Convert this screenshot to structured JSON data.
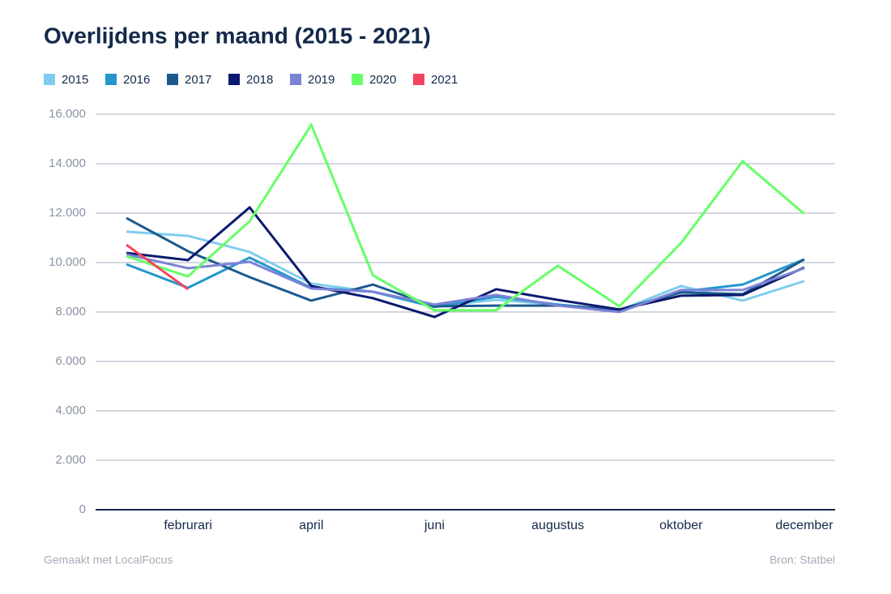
{
  "chart_data": {
    "type": "line",
    "title": "Overlijdens per maand (2015 - 2021)",
    "categories": [
      null,
      "februrari",
      null,
      "april",
      null,
      "juni",
      null,
      "augustus",
      null,
      "oktober",
      null,
      "december"
    ],
    "series": [
      {
        "name": "2015",
        "color": "#7fcdee",
        "values": [
          11250,
          11080,
          10430,
          9150,
          8820,
          8230,
          8490,
          8300,
          8070,
          9050,
          8460,
          9250
        ]
      },
      {
        "name": "2016",
        "color": "#2596cc",
        "values": [
          9930,
          8980,
          10200,
          8980,
          8820,
          8200,
          8620,
          8300,
          8070,
          8820,
          9110,
          10130
        ]
      },
      {
        "name": "2017",
        "color": "#1c5a8e",
        "values": [
          11800,
          10460,
          9410,
          8460,
          9110,
          8230,
          8260,
          8260,
          8100,
          8790,
          8720,
          10130
        ]
      },
      {
        "name": "2018",
        "color": "#0b1a6e",
        "values": [
          10390,
          10100,
          12230,
          9050,
          8560,
          7800,
          8920,
          8490,
          8100,
          8660,
          8690,
          9800
        ]
      },
      {
        "name": "2019",
        "color": "#7b83d6",
        "values": [
          10330,
          9770,
          10030,
          8950,
          8820,
          8300,
          8690,
          8260,
          8000,
          8890,
          8890,
          9770
        ]
      },
      {
        "name": "2020",
        "color": "#66ff66",
        "values": [
          10260,
          9440,
          11670,
          15570,
          9480,
          8070,
          8070,
          9870,
          8230,
          10790,
          14100,
          11970
        ]
      },
      {
        "name": "2021",
        "color": "#f5445f",
        "values": [
          10720,
          8920,
          null,
          null,
          null,
          null,
          null,
          null,
          null,
          null,
          null,
          null
        ]
      }
    ],
    "ylim": [
      0,
      16000
    ],
    "yticks": [
      0,
      {
        "value": 2000,
        "label": "2.000"
      },
      {
        "value": 4000,
        "label": "4.000"
      },
      {
        "value": 6000,
        "label": "6.000"
      },
      {
        "value": 8000,
        "label": "8.000"
      },
      {
        "value": 10000,
        "label": "10.000"
      },
      {
        "value": 12000,
        "label": "12.000"
      },
      {
        "value": 14000,
        "label": "14.000"
      },
      {
        "value": 16000,
        "label": "16.000"
      }
    ],
    "grid": true,
    "legend": "top",
    "footer_left": "Gemaakt met LocalFocus",
    "footer_right": "Bron: Statbel"
  }
}
